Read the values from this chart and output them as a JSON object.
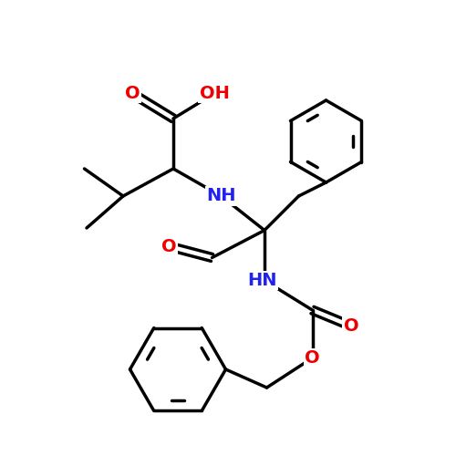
{
  "bg": "#ffffff",
  "bc": "#000000",
  "bw": 2.5,
  "O_color": "#ee0000",
  "N_color": "#2222ee",
  "fs": 14,
  "xlim": [
    0,
    10
  ],
  "ylim": [
    0,
    10
  ]
}
